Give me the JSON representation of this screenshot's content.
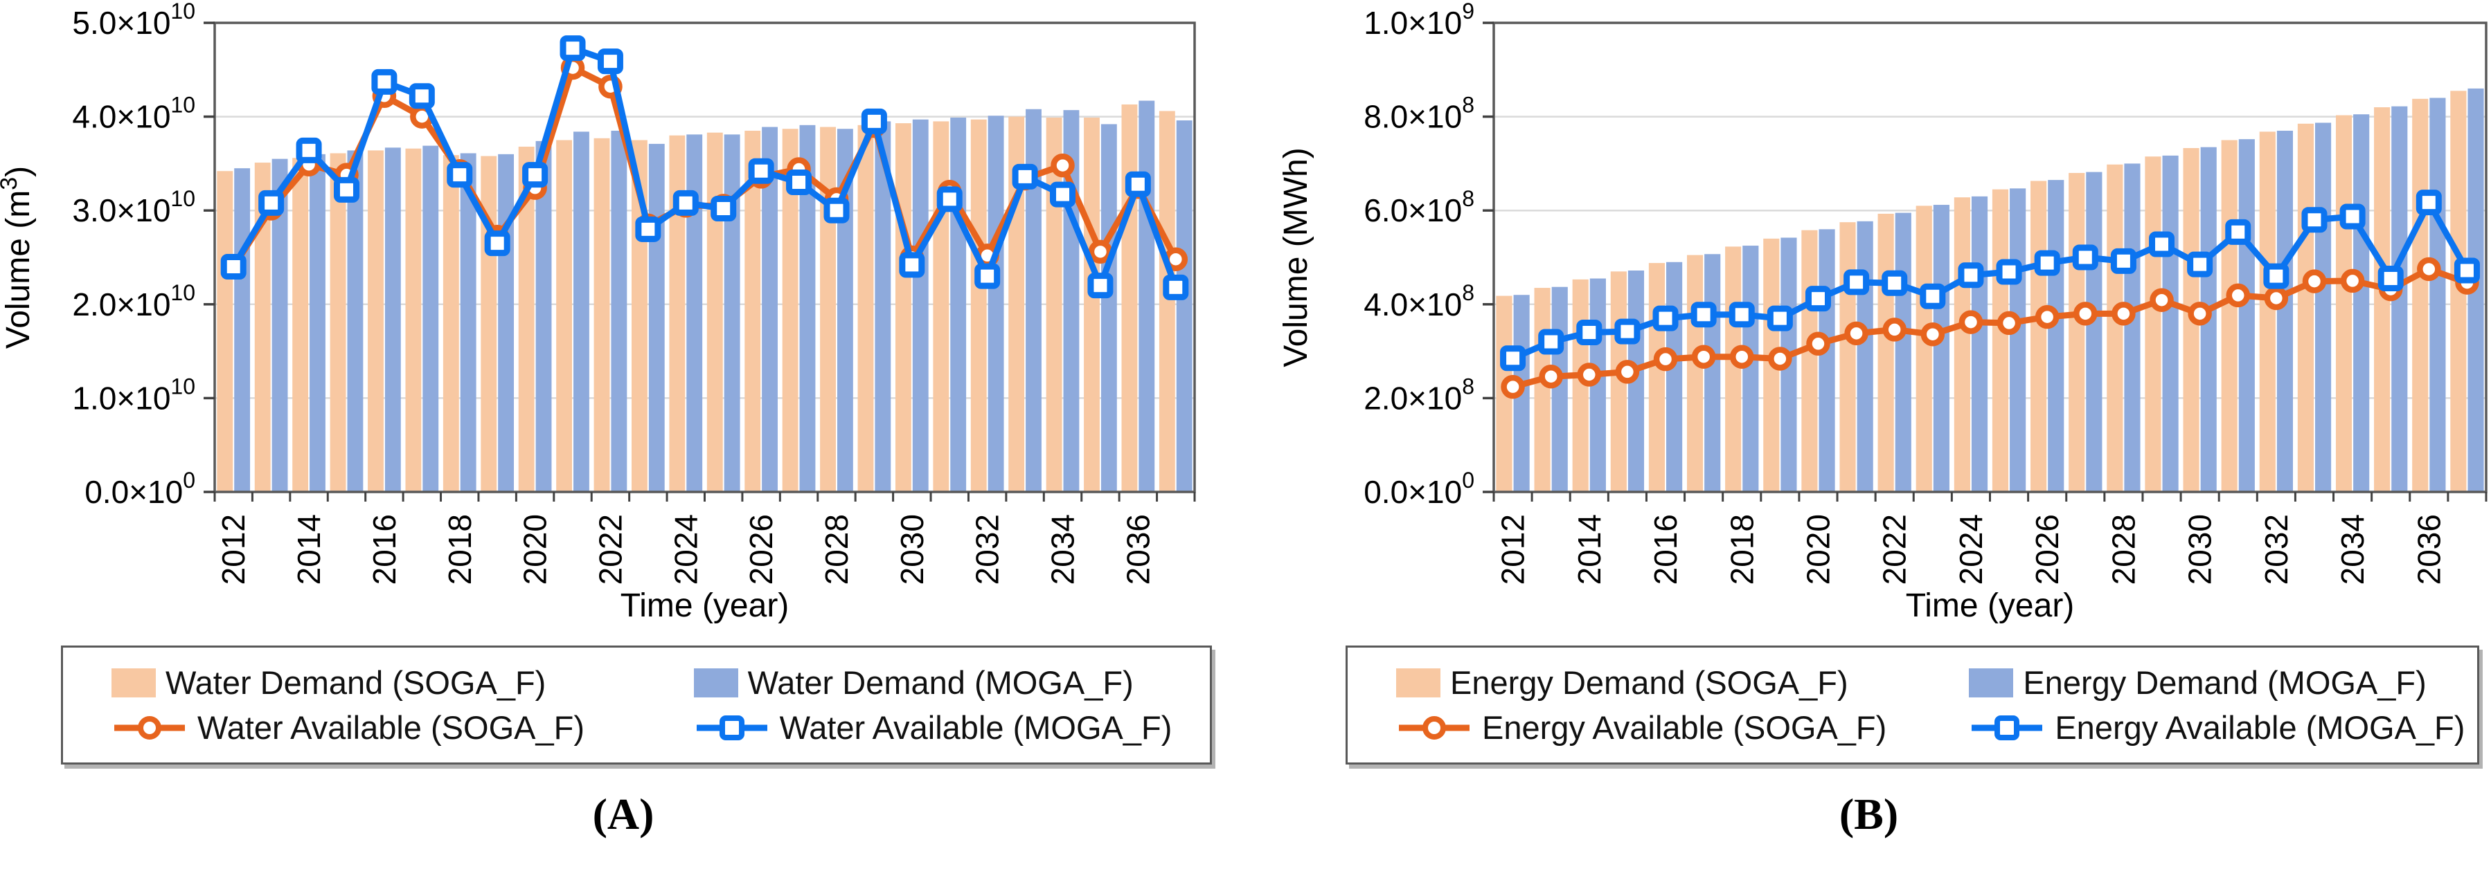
{
  "chart_data": [
    {
      "id": "A",
      "type": "bar+line",
      "caption": "(A)",
      "xlabel": "Time (year)",
      "ylabel": [
        {
          "t": "Volume (m"
        },
        {
          "t": "3",
          "sup": true
        },
        {
          "t": ")"
        }
      ],
      "legend_position": "bottom-box",
      "grid": "horizontal-major",
      "x": [
        2012,
        2013,
        2014,
        2015,
        2016,
        2017,
        2018,
        2019,
        2020,
        2021,
        2022,
        2023,
        2024,
        2025,
        2026,
        2027,
        2028,
        2029,
        2030,
        2031,
        2032,
        2033,
        2034,
        2035,
        2036,
        2037
      ],
      "x_tick_labels": [
        "2012",
        "2014",
        "2016",
        "2018",
        "2020",
        "2022",
        "2024",
        "2026",
        "2028",
        "2030",
        "2032",
        "2034",
        "2036"
      ],
      "value_unit": "1e10 m3",
      "ylim_units": [
        0,
        5
      ],
      "y_ticks": [
        {
          "v": 0,
          "base": "0.0×10",
          "sup": "0"
        },
        {
          "v": 1,
          "base": "1.0×10",
          "sup": "10"
        },
        {
          "v": 2,
          "base": "2.0×10",
          "sup": "10"
        },
        {
          "v": 3,
          "base": "3.0×10",
          "sup": "10"
        },
        {
          "v": 4,
          "base": "4.0×10",
          "sup": "10"
        },
        {
          "v": 5,
          "base": "5.0×10",
          "sup": "10"
        }
      ],
      "series": [
        {
          "name": "Water Demand (SOGA_F)",
          "type": "bar",
          "color": "#F8C8A2",
          "values": [
            3.42,
            3.51,
            3.56,
            3.61,
            3.64,
            3.66,
            3.59,
            3.58,
            3.68,
            3.75,
            3.77,
            3.75,
            3.8,
            3.83,
            3.85,
            3.87,
            3.89,
            3.91,
            3.93,
            3.95,
            3.97,
            4.0,
            3.99,
            3.99,
            4.13,
            4.06
          ]
        },
        {
          "name": "Water Demand (MOGA_F)",
          "type": "bar",
          "color": "#8EAADC",
          "values": [
            3.45,
            3.55,
            3.6,
            3.64,
            3.67,
            3.69,
            3.61,
            3.6,
            3.74,
            3.84,
            3.85,
            3.71,
            3.81,
            3.81,
            3.89,
            3.91,
            3.87,
            3.95,
            3.97,
            3.99,
            4.01,
            4.08,
            4.07,
            3.92,
            4.17,
            3.96
          ]
        },
        {
          "name": "Water Available (SOGA_F)",
          "type": "line",
          "marker": "circle",
          "color": "#E7641E",
          "values": [
            2.4,
            3.02,
            3.49,
            3.38,
            4.22,
            4.0,
            3.42,
            2.72,
            3.24,
            4.52,
            4.32,
            2.84,
            3.05,
            3.05,
            3.36,
            3.44,
            3.12,
            3.9,
            2.5,
            3.2,
            2.52,
            3.34,
            3.48,
            2.56,
            3.25,
            2.48
          ]
        },
        {
          "name": "Water Available (MOGA_F)",
          "type": "line",
          "marker": "square",
          "color": "#0B74F0",
          "values": [
            2.4,
            3.08,
            3.64,
            3.22,
            4.37,
            4.22,
            3.38,
            2.65,
            3.38,
            4.73,
            4.59,
            2.8,
            3.08,
            3.02,
            3.42,
            3.3,
            3.0,
            3.95,
            2.42,
            3.12,
            2.3,
            3.36,
            3.17,
            2.2,
            3.28,
            2.18
          ]
        }
      ]
    },
    {
      "id": "B",
      "type": "bar+line",
      "caption": "(B)",
      "xlabel": "Time (year)",
      "ylabel": [
        {
          "t": "Volume (MWh)"
        }
      ],
      "legend_position": "bottom-box",
      "grid": "horizontal-major",
      "x": [
        2012,
        2013,
        2014,
        2015,
        2016,
        2017,
        2018,
        2019,
        2020,
        2021,
        2022,
        2023,
        2024,
        2025,
        2026,
        2027,
        2028,
        2029,
        2030,
        2031,
        2032,
        2033,
        2034,
        2035,
        2036,
        2037
      ],
      "x_tick_labels": [
        "2012",
        "2014",
        "2016",
        "2018",
        "2020",
        "2022",
        "2024",
        "2026",
        "2028",
        "2030",
        "2032",
        "2034",
        "2036"
      ],
      "value_unit": "1e8 MWh",
      "ylim_units": [
        0,
        10
      ],
      "y_ticks": [
        {
          "v": 0,
          "base": "0.0×10",
          "sup": "0"
        },
        {
          "v": 2,
          "base": "2.0×10",
          "sup": "8"
        },
        {
          "v": 4,
          "base": "4.0×10",
          "sup": "8"
        },
        {
          "v": 6,
          "base": "6.0×10",
          "sup": "8"
        },
        {
          "v": 8,
          "base": "8.0×10",
          "sup": "8"
        },
        {
          "v": 10,
          "base": "1.0×10",
          "sup": "9"
        }
      ],
      "series": [
        {
          "name": "Energy Demand (SOGA_F)",
          "type": "bar",
          "color": "#F8C8A2",
          "values": [
            4.18,
            4.35,
            4.53,
            4.7,
            4.88,
            5.05,
            5.23,
            5.4,
            5.58,
            5.75,
            5.93,
            6.1,
            6.28,
            6.45,
            6.63,
            6.8,
            6.98,
            7.15,
            7.33,
            7.5,
            7.68,
            7.85,
            8.03,
            8.2,
            8.38,
            8.55
          ]
        },
        {
          "name": "Energy Demand (MOGA_F)",
          "type": "bar",
          "color": "#8EAADC",
          "values": [
            4.2,
            4.37,
            4.55,
            4.72,
            4.9,
            5.07,
            5.25,
            5.42,
            5.6,
            5.77,
            5.95,
            6.12,
            6.3,
            6.47,
            6.65,
            6.82,
            7.0,
            7.17,
            7.35,
            7.52,
            7.7,
            7.87,
            8.05,
            8.22,
            8.4,
            8.6
          ]
        },
        {
          "name": "Energy Available (SOGA_F)",
          "type": "line",
          "marker": "circle",
          "color": "#E7641E",
          "values": [
            2.24,
            2.46,
            2.5,
            2.56,
            2.83,
            2.88,
            2.88,
            2.84,
            3.16,
            3.38,
            3.46,
            3.36,
            3.62,
            3.6,
            3.73,
            3.8,
            3.8,
            4.09,
            3.8,
            4.19,
            4.13,
            4.49,
            4.5,
            4.32,
            4.75,
            4.46
          ]
        },
        {
          "name": "Energy Available (MOGA_F)",
          "type": "line",
          "marker": "square",
          "color": "#0B74F0",
          "values": [
            2.85,
            3.2,
            3.4,
            3.42,
            3.7,
            3.78,
            3.78,
            3.7,
            4.12,
            4.47,
            4.45,
            4.17,
            4.62,
            4.69,
            4.88,
            5.0,
            4.92,
            5.28,
            4.85,
            5.54,
            4.6,
            5.8,
            5.87,
            4.55,
            6.17,
            4.72
          ]
        }
      ]
    }
  ],
  "style": {
    "axis_color": "#595959",
    "tick_color": "#404040",
    "grid_color": "#DADADA",
    "text_color": "#000000",
    "bar_soga_color": "#F8C8A2",
    "bar_moga_color": "#8EAADC",
    "line_soga_color": "#E7641E",
    "line_moga_color": "#0B74F0"
  }
}
